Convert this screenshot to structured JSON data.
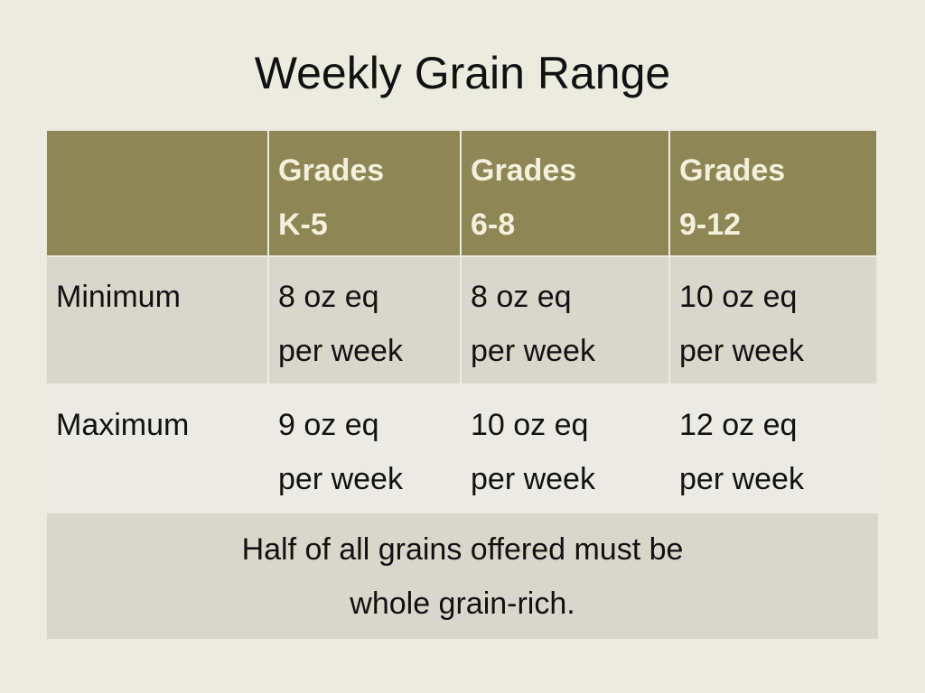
{
  "title": "Weekly Grain Range",
  "table": {
    "header": [
      [
        "Grades",
        "K-5"
      ],
      [
        "Grades",
        "6-8"
      ],
      [
        "Grades",
        "9-12"
      ]
    ],
    "rows": [
      {
        "label": "Minimum",
        "cells": [
          [
            "8 oz eq",
            "per week"
          ],
          [
            "8 oz eq",
            "per week"
          ],
          [
            "10 oz eq",
            "per week"
          ]
        ]
      },
      {
        "label": "Maximum",
        "cells": [
          [
            "9 oz eq",
            "per week"
          ],
          [
            "10 oz eq",
            "per week"
          ],
          [
            "12 oz eq",
            "per week"
          ]
        ]
      }
    ],
    "footer": [
      "Half of all grains offered must be",
      "whole grain-rich."
    ]
  }
}
